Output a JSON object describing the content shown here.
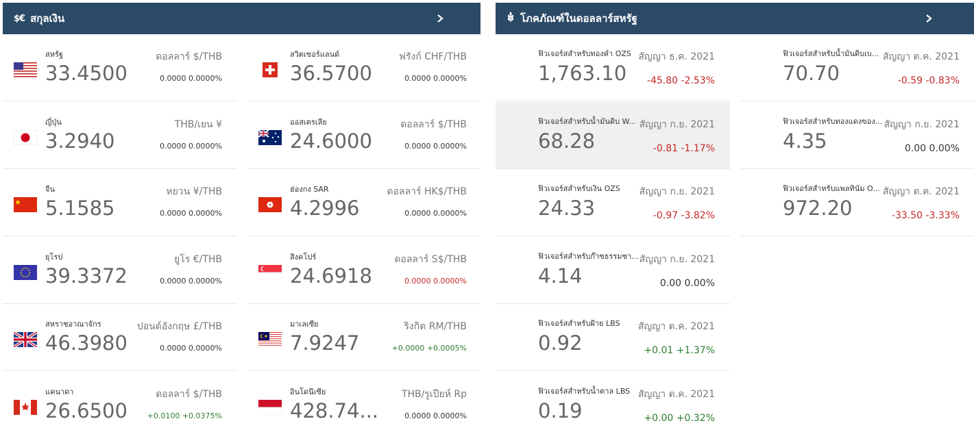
{
  "currency_panel": {
    "title": "สกุลเงิน",
    "icon": "$€",
    "items": [
      {
        "name": "สหรัฐ",
        "pair": "ดอลลาร์ $/THB",
        "price": "33.4500",
        "change": "0.0000 0.0000%",
        "trend": "neutral",
        "flag": "us"
      },
      {
        "name": "ญี่ปุ่น",
        "pair": "THB/เยน ¥",
        "price": "3.2940",
        "change": "0.0000 0.0000%",
        "trend": "neutral",
        "flag": "jp"
      },
      {
        "name": "จีน",
        "pair": "หยวน ¥/THB",
        "price": "5.1585",
        "change": "0.0000 0.0000%",
        "trend": "neutral",
        "flag": "cn"
      },
      {
        "name": "ยุโรป",
        "pair": "ยูโร €/THB",
        "price": "39.3372",
        "change": "0.0000 0.0000%",
        "trend": "neutral",
        "flag": "eu"
      },
      {
        "name": "สหราชอาณาจักร",
        "pair": "ปอนด์อังกฤษ £/THB",
        "price": "46.3980",
        "change": "0.0000 0.0000%",
        "trend": "neutral",
        "flag": "gb"
      },
      {
        "name": "แคนาดา",
        "pair": "ดอลลาร์ $/THB",
        "price": "26.6500",
        "change": "+0.0100 +0.0375%",
        "trend": "up",
        "flag": "ca"
      },
      {
        "name": "สวิตเซอร์แลนด์",
        "pair": "ฟรังก์ CHF/THB",
        "price": "36.5700",
        "change": "0.0000 0.0000%",
        "trend": "neutral",
        "flag": "ch"
      },
      {
        "name": "ออสเตรเลีย",
        "pair": "ดอลลาร์ $/THB",
        "price": "24.6000",
        "change": "0.0000 0.0000%",
        "trend": "neutral",
        "flag": "au"
      },
      {
        "name": "ฮ่องกง SAR",
        "pair": "ดอลลาร์ HK$/THB",
        "price": "4.2996",
        "change": "0.0000 0.0000%",
        "trend": "neutral",
        "flag": "hk"
      },
      {
        "name": "สิงคโปร์",
        "pair": "ดอลลาร์ S$/THB",
        "price": "24.6918",
        "change": "0.0000 0.0000%",
        "trend": "down",
        "flag": "sg"
      },
      {
        "name": "มาเลเซีย",
        "pair": "ริงกิต RM/THB",
        "price": "7.9247",
        "change": "+0.0000 +0.0005%",
        "trend": "up",
        "flag": "my"
      },
      {
        "name": "อินโดนีเซีย",
        "pair": "THB/รูเปียห์ Rp",
        "price": "428.74...",
        "change": "0.0000 0.0000%",
        "trend": "neutral",
        "flag": "id"
      }
    ]
  },
  "commodity_panel": {
    "title": "โภคภัณฑ์ในดอลลาร์สหรัฐ",
    "icon": "wheat-icon",
    "items": [
      {
        "name": "ฟิวเจอร์สสำหรับทองคำ OZS",
        "contract": "สัญญา ธ.ค. 2021",
        "price": "1,763.10",
        "change": "-45.80 -2.53%",
        "trend": "down"
      },
      {
        "name": "ฟิวเจอร์สสำหรับน้ำมันดิบ W...",
        "contract": "สัญญา ก.ย. 2021",
        "price": "68.28",
        "change": "-0.81 -1.17%",
        "trend": "down",
        "highlight": true
      },
      {
        "name": "ฟิวเจอร์สสำหรับเงิน OZS",
        "contract": "สัญญา ก.ย. 2021",
        "price": "24.33",
        "change": "-0.97 -3.82%",
        "trend": "down"
      },
      {
        "name": "ฟิวเจอร์สสำหรับก๊าซธรรมชา...",
        "contract": "สัญญา ก.ย. 2021",
        "price": "4.14",
        "change": "0.00 0.00%",
        "trend": "neutral"
      },
      {
        "name": "ฟิวเจอร์สสำหรับฝ้าย LBS",
        "contract": "สัญญา ต.ค. 2021",
        "price": "0.92",
        "change": "+0.01 +1.37%",
        "trend": "up"
      },
      {
        "name": "ฟิวเจอร์สสำหรับน้ำตาล LBS",
        "contract": "สัญญา ต.ค. 2021",
        "price": "0.19",
        "change": "+0.00 +0.32%",
        "trend": "up"
      },
      {
        "name": "ฟิวเจอร์สสำหรับน้ำมันดิบเบ...",
        "contract": "สัญญา ต.ค. 2021",
        "price": "70.70",
        "change": "-0.59 -0.83%",
        "trend": "down"
      },
      {
        "name": "ฟิวเจอร์สสำหรับทองแดงของ...",
        "contract": "สัญญา ก.ย. 2021",
        "price": "4.35",
        "change": "0.00 0.00%",
        "trend": "neutral"
      },
      {
        "name": "ฟิวเจอร์สสำหรับแพลทินัม O...",
        "contract": "สัญญา ต.ค. 2021",
        "price": "972.20",
        "change": "-33.50 -3.33%",
        "trend": "down"
      }
    ]
  },
  "colors": {
    "header_bg": "#2b4a66",
    "negative": "#c62828",
    "positive": "#2e7d32"
  }
}
